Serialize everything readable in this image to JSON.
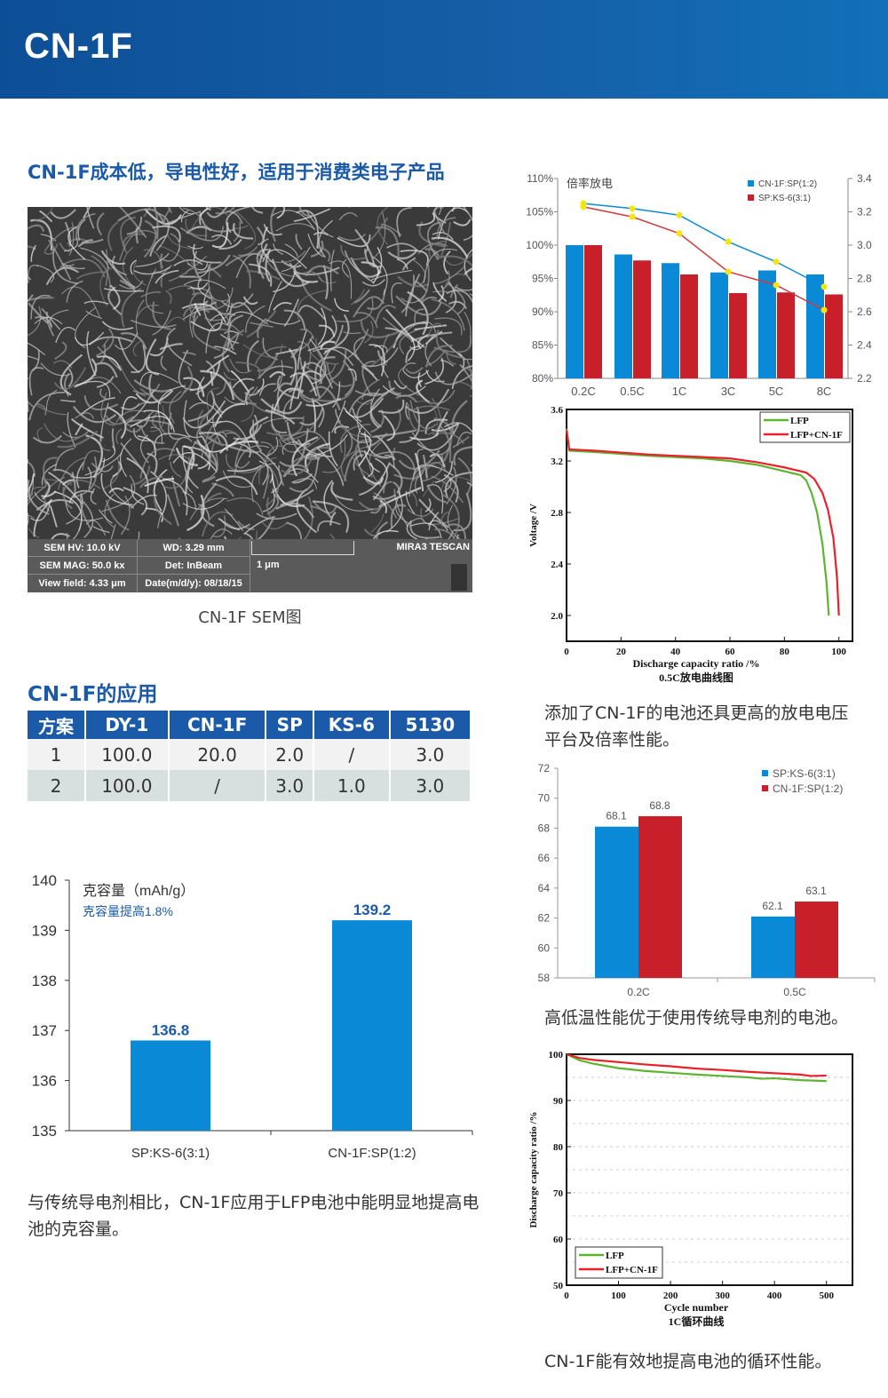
{
  "header": {
    "title": "CN-1F"
  },
  "left": {
    "heading": "CN-1F成本低，导电性好，适用于消费类电子产品",
    "sem": {
      "hv": "SEM HV: 10.0 kV",
      "wd": "WD: 3.29 mm",
      "brand": "MIRA3 TESCAN",
      "mag": "SEM MAG: 50.0 kx",
      "det": "Det: InBeam",
      "scale": "1 μm",
      "view_field": "View field: 4.33 μm",
      "date": "Date(m/d/y): 08/18/15"
    },
    "sem_caption": "CN-1F SEM图",
    "app_heading": "CN-1F的应用",
    "table": {
      "headers": [
        "方案",
        "DY-1",
        "CN-1F",
        "SP",
        "KS-6",
        "5130"
      ],
      "rows": [
        [
          "1",
          "100.0",
          "20.0",
          "2.0",
          "/",
          "3.0"
        ],
        [
          "2",
          "100.0",
          "/",
          "3.0",
          "1.0",
          "3.0"
        ]
      ]
    },
    "capacity_paragraph": "与传统导电剂相比，CN-1F应用于LFP电池中能明显地提高电池的克容量。"
  },
  "right": {
    "discharge_paragraph": "添加了CN-1F的电池还具更高的放电电压平台及倍率性能。",
    "temp_paragraph": "高低温性能优于使用传统导电剂的电池。",
    "cycle_paragraph": "CN-1F能有效地提高电池的循环性能。"
  },
  "colors": {
    "blue": "#0a8ad6",
    "red": "#c8202a",
    "yellow": "#f5e50f",
    "green": "#5cb531",
    "line_red": "#e8212a",
    "heading_blue": "#1a5aa8"
  },
  "chart_data": [
    {
      "id": "capacity",
      "type": "bar",
      "annotation": "克容量（mAh/g）",
      "annotation2": "克容量提高1.8%",
      "categories": [
        "SP:KS-6(3:1)",
        "CN-1F:SP(1:2)"
      ],
      "values": [
        136.8,
        139.2
      ],
      "data_labels": [
        "136.8",
        "139.2"
      ],
      "ylim": [
        135,
        140
      ],
      "yticks": [
        "135",
        "136",
        "137",
        "138",
        "139",
        "140"
      ],
      "grid": false
    },
    {
      "id": "rate",
      "type": "bar+line",
      "title": "倍率放电",
      "categories": [
        "0.2C",
        "0.5C",
        "1C",
        "3C",
        "5C",
        "8C"
      ],
      "series": [
        {
          "name": "CN-1F:SP(1:2)",
          "type": "bar",
          "axis": "left",
          "values": [
            100,
            98.6,
            97.3,
            95.9,
            96.2,
            95.6
          ]
        },
        {
          "name": "SP:KS-6(3:1)",
          "type": "bar",
          "axis": "left",
          "values": [
            100,
            97.7,
            95.6,
            92.8,
            92.9,
            92.6
          ]
        },
        {
          "type": "line",
          "axis": "right",
          "values": [
            3.25,
            3.22,
            3.18,
            3.02,
            2.9,
            2.75
          ]
        },
        {
          "type": "line",
          "axis": "right",
          "values": [
            3.23,
            3.17,
            3.07,
            2.84,
            2.76,
            2.61
          ]
        }
      ],
      "ylim": [
        80,
        110
      ],
      "yticks": [
        "80%",
        "85%",
        "90%",
        "95%",
        "100%",
        "105%",
        "110%"
      ],
      "y2lim": [
        2.2,
        3.4
      ],
      "y2ticks": [
        "2.2",
        "2.4",
        "2.6",
        "2.8",
        "3.0",
        "3.2",
        "3.4"
      ],
      "legend": "top-right"
    },
    {
      "id": "discharge",
      "type": "line",
      "title": "0.5C放电曲线图",
      "xlabel": "Discharge capacity ratio /%",
      "ylabel": "Voltage /V",
      "xlim": [
        0,
        105
      ],
      "ylim": [
        1.8,
        3.6
      ],
      "xticks": [
        "0",
        "20",
        "40",
        "60",
        "80",
        "100"
      ],
      "yticks": [
        "2.0",
        "2.4",
        "2.8",
        "3.2",
        "3.6"
      ],
      "series": [
        {
          "name": "LFP",
          "points": [
            [
              0,
              3.45
            ],
            [
              1,
              3.28
            ],
            [
              10,
              3.27
            ],
            [
              30,
              3.24
            ],
            [
              50,
              3.22
            ],
            [
              60,
              3.2
            ],
            [
              70,
              3.17
            ],
            [
              80,
              3.12
            ],
            [
              86,
              3.09
            ],
            [
              88,
              3.05
            ],
            [
              90,
              2.95
            ],
            [
              92,
              2.8
            ],
            [
              94,
              2.55
            ],
            [
              95.5,
              2.25
            ],
            [
              96.3,
              2.0
            ]
          ]
        },
        {
          "name": "LFP+CN-1F",
          "points": [
            [
              0,
              3.44
            ],
            [
              1,
              3.29
            ],
            [
              10,
              3.28
            ],
            [
              30,
              3.25
            ],
            [
              50,
              3.23
            ],
            [
              60,
              3.22
            ],
            [
              70,
              3.19
            ],
            [
              80,
              3.15
            ],
            [
              88,
              3.11
            ],
            [
              91,
              3.06
            ],
            [
              94,
              2.95
            ],
            [
              96,
              2.82
            ],
            [
              98,
              2.6
            ],
            [
              99.3,
              2.3
            ],
            [
              100,
              2.0
            ]
          ]
        }
      ],
      "legend": "top-right"
    },
    {
      "id": "temperature",
      "type": "bar",
      "categories": [
        "0.2C",
        "0.5C"
      ],
      "series": [
        {
          "name": "SP:KS-6(3:1)",
          "values": [
            68.1,
            62.1
          ],
          "labels": [
            "68.1",
            "62.1"
          ]
        },
        {
          "name": "CN-1F:SP(1:2)",
          "values": [
            68.8,
            63.1
          ],
          "labels": [
            "68.8",
            "63.1"
          ]
        }
      ],
      "ylim": [
        58,
        72
      ],
      "yticks": [
        "58",
        "60",
        "62",
        "64",
        "66",
        "68",
        "70",
        "72"
      ],
      "legend": "top-right"
    },
    {
      "id": "cycle",
      "type": "line",
      "title": "1C循环曲线",
      "xlabel": "Cycle number",
      "ylabel": "Discharge capacity ratio /%",
      "xlim": [
        0,
        550
      ],
      "ylim": [
        50,
        100
      ],
      "xticks": [
        "0",
        "100",
        "200",
        "300",
        "400",
        "500"
      ],
      "yticks": [
        "50",
        "60",
        "70",
        "80",
        "90",
        "100"
      ],
      "grid": true,
      "series": [
        {
          "name": "LFP",
          "points": [
            [
              0,
              100
            ],
            [
              25,
              98.7
            ],
            [
              50,
              98
            ],
            [
              100,
              97
            ],
            [
              150,
              96.4
            ],
            [
              200,
              96
            ],
            [
              250,
              95.6
            ],
            [
              300,
              95.3
            ],
            [
              350,
              95
            ],
            [
              375,
              94.7
            ],
            [
              400,
              94.8
            ],
            [
              450,
              94.4
            ],
            [
              500,
              94.2
            ]
          ]
        },
        {
          "name": "LFP+CN-1F",
          "points": [
            [
              0,
              100
            ],
            [
              25,
              99.2
            ],
            [
              50,
              98.8
            ],
            [
              100,
              98.3
            ],
            [
              150,
              97.8
            ],
            [
              200,
              97.4
            ],
            [
              250,
              96.9
            ],
            [
              300,
              96.6
            ],
            [
              350,
              96.2
            ],
            [
              400,
              95.9
            ],
            [
              450,
              95.6
            ],
            [
              470,
              95.3
            ],
            [
              500,
              95.4
            ]
          ]
        }
      ],
      "legend": "bottom-left"
    }
  ]
}
